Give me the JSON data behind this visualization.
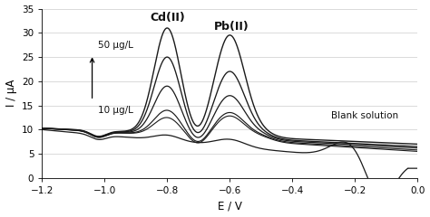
{
  "title": "",
  "xlabel": "E / V",
  "ylabel": "I / μA",
  "xlim": [
    -1.2,
    0
  ],
  "ylim": [
    0,
    35
  ],
  "xticks": [
    -1.2,
    -1.0,
    -0.8,
    -0.6,
    -0.4,
    -0.2,
    0
  ],
  "yticks": [
    0,
    5,
    10,
    15,
    20,
    25,
    30,
    35
  ],
  "cd_label": "Cd(II)",
  "pb_label": "Pb(II)",
  "blank_label": "Blank solution",
  "conc_low_label": "10 μg/L",
  "conc_high_label": "50 μg/L",
  "line_color": "#1a1a1a",
  "background_color": "#ffffff",
  "n_spiked": 5,
  "cd_peak_heights": [
    31.0,
    25.0,
    19.0,
    14.0,
    12.5
  ],
  "pb_peak_heights": [
    29.5,
    22.0,
    17.0,
    13.5,
    12.8
  ],
  "right_end_vals": [
    7.0,
    6.5,
    6.2,
    5.8,
    5.5
  ],
  "grid_color": "#cccccc"
}
